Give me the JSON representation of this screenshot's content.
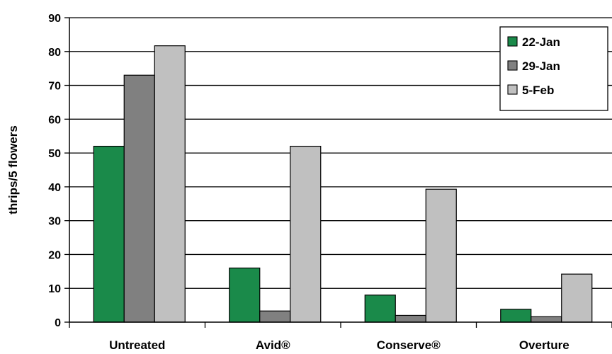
{
  "chart_data": {
    "type": "bar",
    "title": "",
    "xlabel": "",
    "ylabel": "thrips/5 flowers",
    "ylim": [
      0,
      90
    ],
    "yticks": [
      0,
      10,
      20,
      30,
      40,
      50,
      60,
      70,
      80,
      90
    ],
    "grid": true,
    "legend_position": "top-right",
    "categories": [
      "Untreated",
      "Avid®",
      "Conserve®",
      "Overture"
    ],
    "series": [
      {
        "name": "22-Jan",
        "color": "#1a8a4a",
        "values": [
          52,
          16,
          8,
          3.8
        ]
      },
      {
        "name": "29-Jan",
        "color": "#808080",
        "values": [
          73,
          3.3,
          2,
          1.6
        ]
      },
      {
        "name": "5-Feb",
        "color": "#c0c0c0",
        "values": [
          81.7,
          52,
          39.3,
          14.2
        ]
      }
    ]
  }
}
